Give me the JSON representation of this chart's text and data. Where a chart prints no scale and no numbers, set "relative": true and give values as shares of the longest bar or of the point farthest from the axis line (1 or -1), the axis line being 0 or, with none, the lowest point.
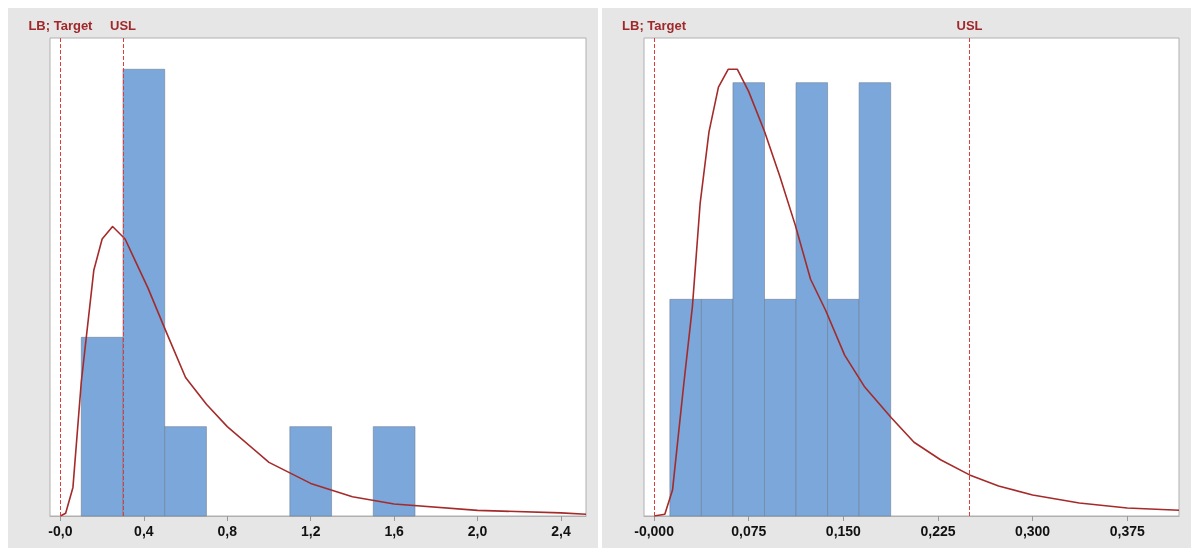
{
  "chart_data": [
    {
      "type": "histogram",
      "relative": true,
      "tick_labels": "x",
      "grid": false,
      "xlim": [
        -0.05,
        2.52
      ],
      "xticks": [
        {
          "value": 0,
          "label": "-0,0"
        },
        {
          "value": 0.4,
          "label": "0,4"
        },
        {
          "value": 0.8,
          "label": "0,8"
        },
        {
          "value": 1.2,
          "label": "1,2"
        },
        {
          "value": 1.6,
          "label": "1,6"
        },
        {
          "value": 2.0,
          "label": "2,0"
        },
        {
          "value": 2.4,
          "label": "2,4"
        }
      ],
      "ref_lines": [
        {
          "axis": "x",
          "value": 0,
          "label": "LB; Target",
          "color": "#e03c3c",
          "line_style": "dashed"
        },
        {
          "axis": "x",
          "value": 0.3,
          "label": "USL",
          "color": "#e03c3c",
          "line_style": "dashed"
        }
      ],
      "series": [
        {
          "type": "histogram",
          "color": "#7ba7da",
          "bins": [
            0.1,
            0.3,
            0.5,
            0.7,
            0.9,
            1.1,
            1.3,
            1.5,
            1.7
          ],
          "values": [
            0.4,
            1,
            0.2,
            0,
            0,
            0.2,
            0,
            0.2
          ]
        },
        {
          "type": "line",
          "color": "#a52a2a",
          "marker": "none",
          "line_style": "solid",
          "x": [
            0,
            0.025,
            0.06,
            0.1,
            0.16,
            0.2,
            0.25,
            0.31,
            0.36,
            0.42,
            0.5,
            0.6,
            0.7,
            0.8,
            1.0,
            1.2,
            1.4,
            1.6,
            2.0,
            2.4,
            2.52
          ],
          "values": [
            0,
            0.006,
            0.064,
            0.3,
            0.55,
            0.62,
            0.648,
            0.62,
            0.57,
            0.51,
            0.42,
            0.31,
            0.25,
            0.2,
            0.12,
            0.073,
            0.043,
            0.027,
            0.0125,
            0.007,
            0.004
          ]
        }
      ]
    },
    {
      "type": "histogram",
      "relative": true,
      "tick_labels": "x",
      "grid": false,
      "xlim": [
        -0.008,
        0.416
      ],
      "xticks": [
        {
          "value": 0,
          "label": "-0,000"
        },
        {
          "value": 0.075,
          "label": "0,075"
        },
        {
          "value": 0.15,
          "label": "0,150"
        },
        {
          "value": 0.225,
          "label": "0,225"
        },
        {
          "value": 0.3,
          "label": "0,300"
        },
        {
          "value": 0.375,
          "label": "0,375"
        }
      ],
      "ref_lines": [
        {
          "axis": "x",
          "value": 0,
          "label": "LB; Target",
          "color": "#e03c3c",
          "line_style": "dashed"
        },
        {
          "axis": "x",
          "value": 0.25,
          "label": "USL",
          "color": "#e03c3c",
          "line_style": "dashed"
        }
      ],
      "series": [
        {
          "type": "histogram",
          "color": "#7ba7da",
          "bins": [
            0.0125,
            0.0375,
            0.0625,
            0.0875,
            0.1125,
            0.1375,
            0.1625,
            0.1875
          ],
          "values": [
            0.485,
            0.485,
            0.97,
            0.485,
            0.97,
            0.485,
            0.97
          ]
        },
        {
          "type": "line",
          "color": "#a52a2a",
          "marker": "none",
          "line_style": "solid",
          "x": [
            0,
            0.0085,
            0.0146,
            0.0237,
            0.0304,
            0.0365,
            0.0435,
            0.051,
            0.0587,
            0.066,
            0.075,
            0.0876,
            0.0997,
            0.112,
            0.124,
            0.136,
            0.151,
            0.1666,
            0.188,
            0.206,
            0.227,
            0.25,
            0.273,
            0.3,
            0.337,
            0.375,
            0.416
          ],
          "values": [
            0,
            0.004,
            0.058,
            0.3,
            0.47,
            0.7,
            0.86,
            0.96,
            1,
            1,
            0.95,
            0.86,
            0.76,
            0.65,
            0.53,
            0.46,
            0.36,
            0.29,
            0.22,
            0.165,
            0.126,
            0.092,
            0.067,
            0.047,
            0.029,
            0.018,
            0.013
          ]
        }
      ]
    }
  ]
}
